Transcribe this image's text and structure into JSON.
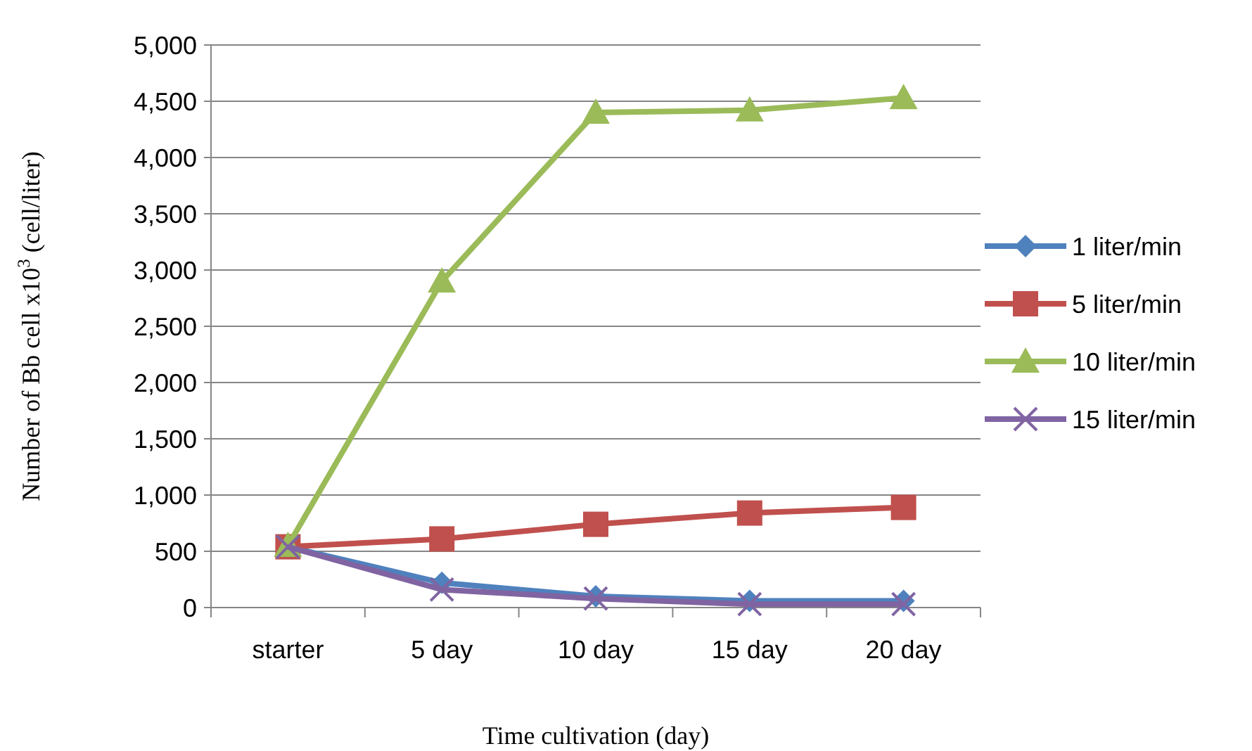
{
  "chart_data": {
    "type": "line",
    "xlabel": "Time cultivation (day)",
    "ylabel": "Number of Bb cell x10$^{3}$ (cell/liter)",
    "categories": [
      "starter",
      "5 day",
      "10 day",
      "15 day",
      "20 day"
    ],
    "series": [
      {
        "name": "1 liter/min",
        "color": "#4f81bd",
        "marker": "diamond",
        "values": [
          540,
          220,
          100,
          60,
          60
        ]
      },
      {
        "name": "5 liter/min",
        "color": "#c0504d",
        "marker": "square",
        "values": [
          540,
          610,
          740,
          840,
          890
        ]
      },
      {
        "name": "10 liter/min",
        "color": "#9bbb59",
        "marker": "triangle",
        "values": [
          550,
          2900,
          4400,
          4420,
          4530
        ]
      },
      {
        "name": "15 liter/min",
        "color": "#8064a2",
        "marker": "cross",
        "values": [
          540,
          160,
          80,
          30,
          30
        ]
      }
    ],
    "ylim": [
      0,
      5000
    ],
    "yticks": [
      {
        "value": 0,
        "label": "0"
      },
      {
        "value": 500,
        "label": "500"
      },
      {
        "value": 1000,
        "label": "1,000"
      },
      {
        "value": 1500,
        "label": "1,500"
      },
      {
        "value": 2000,
        "label": "2,000"
      },
      {
        "value": 2500,
        "label": "2,500"
      },
      {
        "value": 3000,
        "label": "3,000"
      },
      {
        "value": 3500,
        "label": "3,500"
      },
      {
        "value": 4000,
        "label": "4,000"
      },
      {
        "value": 4500,
        "label": "4,500"
      },
      {
        "value": 5000,
        "label": "5,000"
      }
    ],
    "grid": "y",
    "legend": "right"
  }
}
